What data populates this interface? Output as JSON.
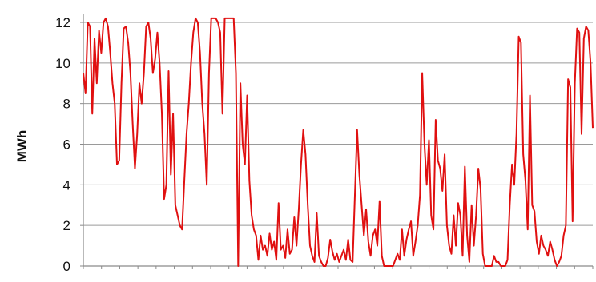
{
  "chart_data": {
    "type": "line",
    "title": "",
    "xlabel": "",
    "ylabel": "MWh",
    "ylim": [
      0,
      12
    ],
    "yticks": [
      "0",
      "2",
      "4",
      "6",
      "8",
      "10",
      "12"
    ],
    "grid": "horizontal",
    "legend": "none",
    "colors": {
      "series": "#e01010",
      "grid": "#9a9a9a",
      "axis": "#8a8a8a"
    },
    "series": [
      {
        "values": [
          9.5,
          8.5,
          12.0,
          11.8,
          7.5,
          11.2,
          9.0,
          11.6,
          10.5,
          12.0,
          12.2,
          11.8,
          10.5,
          9.0,
          8.0,
          5.0,
          5.2,
          9.0,
          11.7,
          11.8,
          11.0,
          9.5,
          7.0,
          4.8,
          6.5,
          9.0,
          8.0,
          9.5,
          11.8,
          12.0,
          11.2,
          9.5,
          10.2,
          11.5,
          10.0,
          7.5,
          3.3,
          4.0,
          9.6,
          4.5,
          7.5,
          3.0,
          2.5,
          2.0,
          1.8,
          4.2,
          6.5,
          8.0,
          10.0,
          11.5,
          12.2,
          12.0,
          10.5,
          8.0,
          6.5,
          4.0,
          9.5,
          12.2,
          12.2,
          12.2,
          12.0,
          11.5,
          7.5,
          12.2,
          12.2,
          12.2,
          12.2,
          12.2,
          9.5,
          0.0,
          9.0,
          6.0,
          5.0,
          8.4,
          4.2,
          2.5,
          1.8,
          1.5,
          0.3,
          1.5,
          0.8,
          1.0,
          0.5,
          1.6,
          0.8,
          1.2,
          0.3,
          3.1,
          0.8,
          1.0,
          0.4,
          1.8,
          0.6,
          0.8,
          2.4,
          1.0,
          2.8,
          5.0,
          6.7,
          5.5,
          3.0,
          1.0,
          0.5,
          0.2,
          2.6,
          0.5,
          0.2,
          0.0,
          0.0,
          0.4,
          1.3,
          0.7,
          0.3,
          0.6,
          0.2,
          0.5,
          0.8,
          0.3,
          1.3,
          0.3,
          0.2,
          3.5,
          6.7,
          4.5,
          3.0,
          1.5,
          2.8,
          1.2,
          0.5,
          1.5,
          1.8,
          1.0,
          3.2,
          0.5,
          0.0,
          0.0,
          0.0,
          0.0,
          0.0,
          0.3,
          0.6,
          0.3,
          1.8,
          0.5,
          1.3,
          1.8,
          2.2,
          0.5,
          1.2,
          2.0,
          3.5,
          9.5,
          6.0,
          4.0,
          6.2,
          2.5,
          1.8,
          7.2,
          5.2,
          4.8,
          3.7,
          5.5,
          2.0,
          1.0,
          0.6,
          2.5,
          1.0,
          3.1,
          2.5,
          0.5,
          4.9,
          1.5,
          0.2,
          3.0,
          1.0,
          2.5,
          4.8,
          3.8,
          0.6,
          0.0,
          0.0,
          0.0,
          0.0,
          0.5,
          0.2,
          0.2,
          0.0,
          0.0,
          0.0,
          0.3,
          3.0,
          5.0,
          4.0,
          6.5,
          11.3,
          11.0,
          5.5,
          4.2,
          1.8,
          8.4,
          3.0,
          2.7,
          1.2,
          0.6,
          1.5,
          1.0,
          0.8,
          0.5,
          1.2,
          0.8,
          0.3,
          0.0,
          0.2,
          0.5,
          1.5,
          2.0,
          9.2,
          8.8,
          2.2,
          9.0,
          11.7,
          11.5,
          6.5,
          11.2,
          11.8,
          11.6,
          10.0,
          6.8
        ]
      }
    ]
  }
}
